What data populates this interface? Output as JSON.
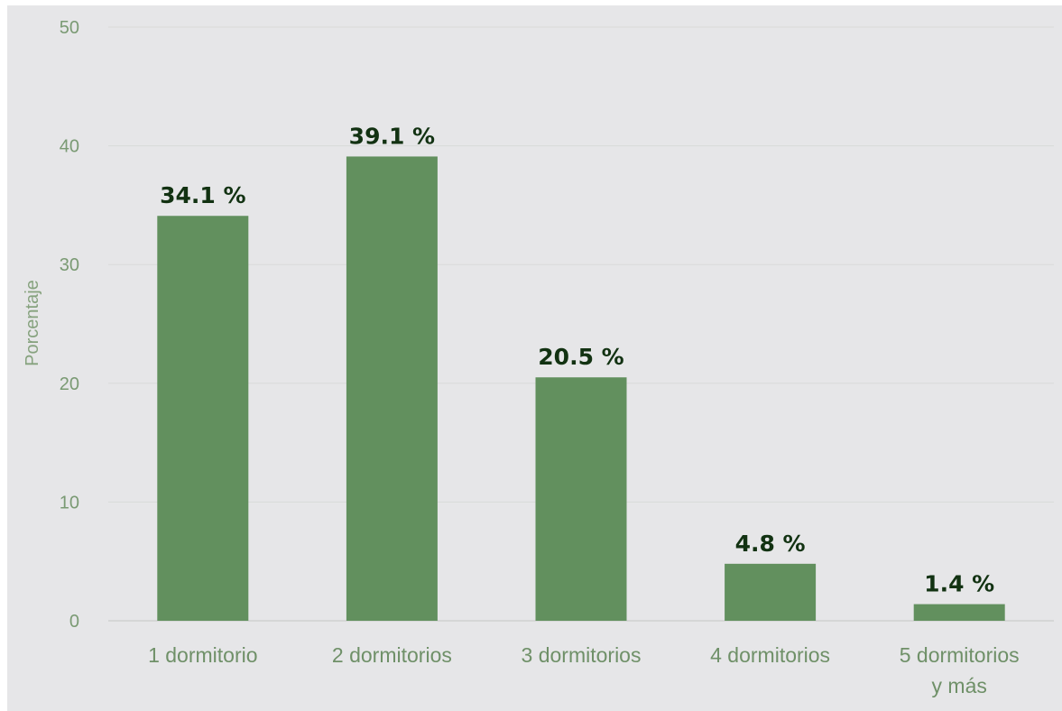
{
  "chart_data": {
    "type": "bar",
    "title": "",
    "xlabel": "",
    "ylabel": "Porcentaje",
    "ylim": [
      0,
      50
    ],
    "yticks": [
      0,
      10,
      20,
      30,
      40,
      50
    ],
    "grid": true,
    "legend": "none",
    "categories": [
      [
        "1 dormitorio"
      ],
      [
        "2 dormitorios"
      ],
      [
        "3 dormitorios"
      ],
      [
        "4 dormitorios"
      ],
      [
        "5 dormitorios",
        "y más"
      ]
    ],
    "values": [
      34.1,
      39.1,
      20.5,
      4.8,
      1.4
    ],
    "data_labels": [
      "34.1 %",
      "39.1 %",
      "20.5 %",
      "4.8 %",
      "1.4 %"
    ],
    "colors": {
      "bar": "#62905e",
      "background": "#e6e6e8"
    }
  }
}
